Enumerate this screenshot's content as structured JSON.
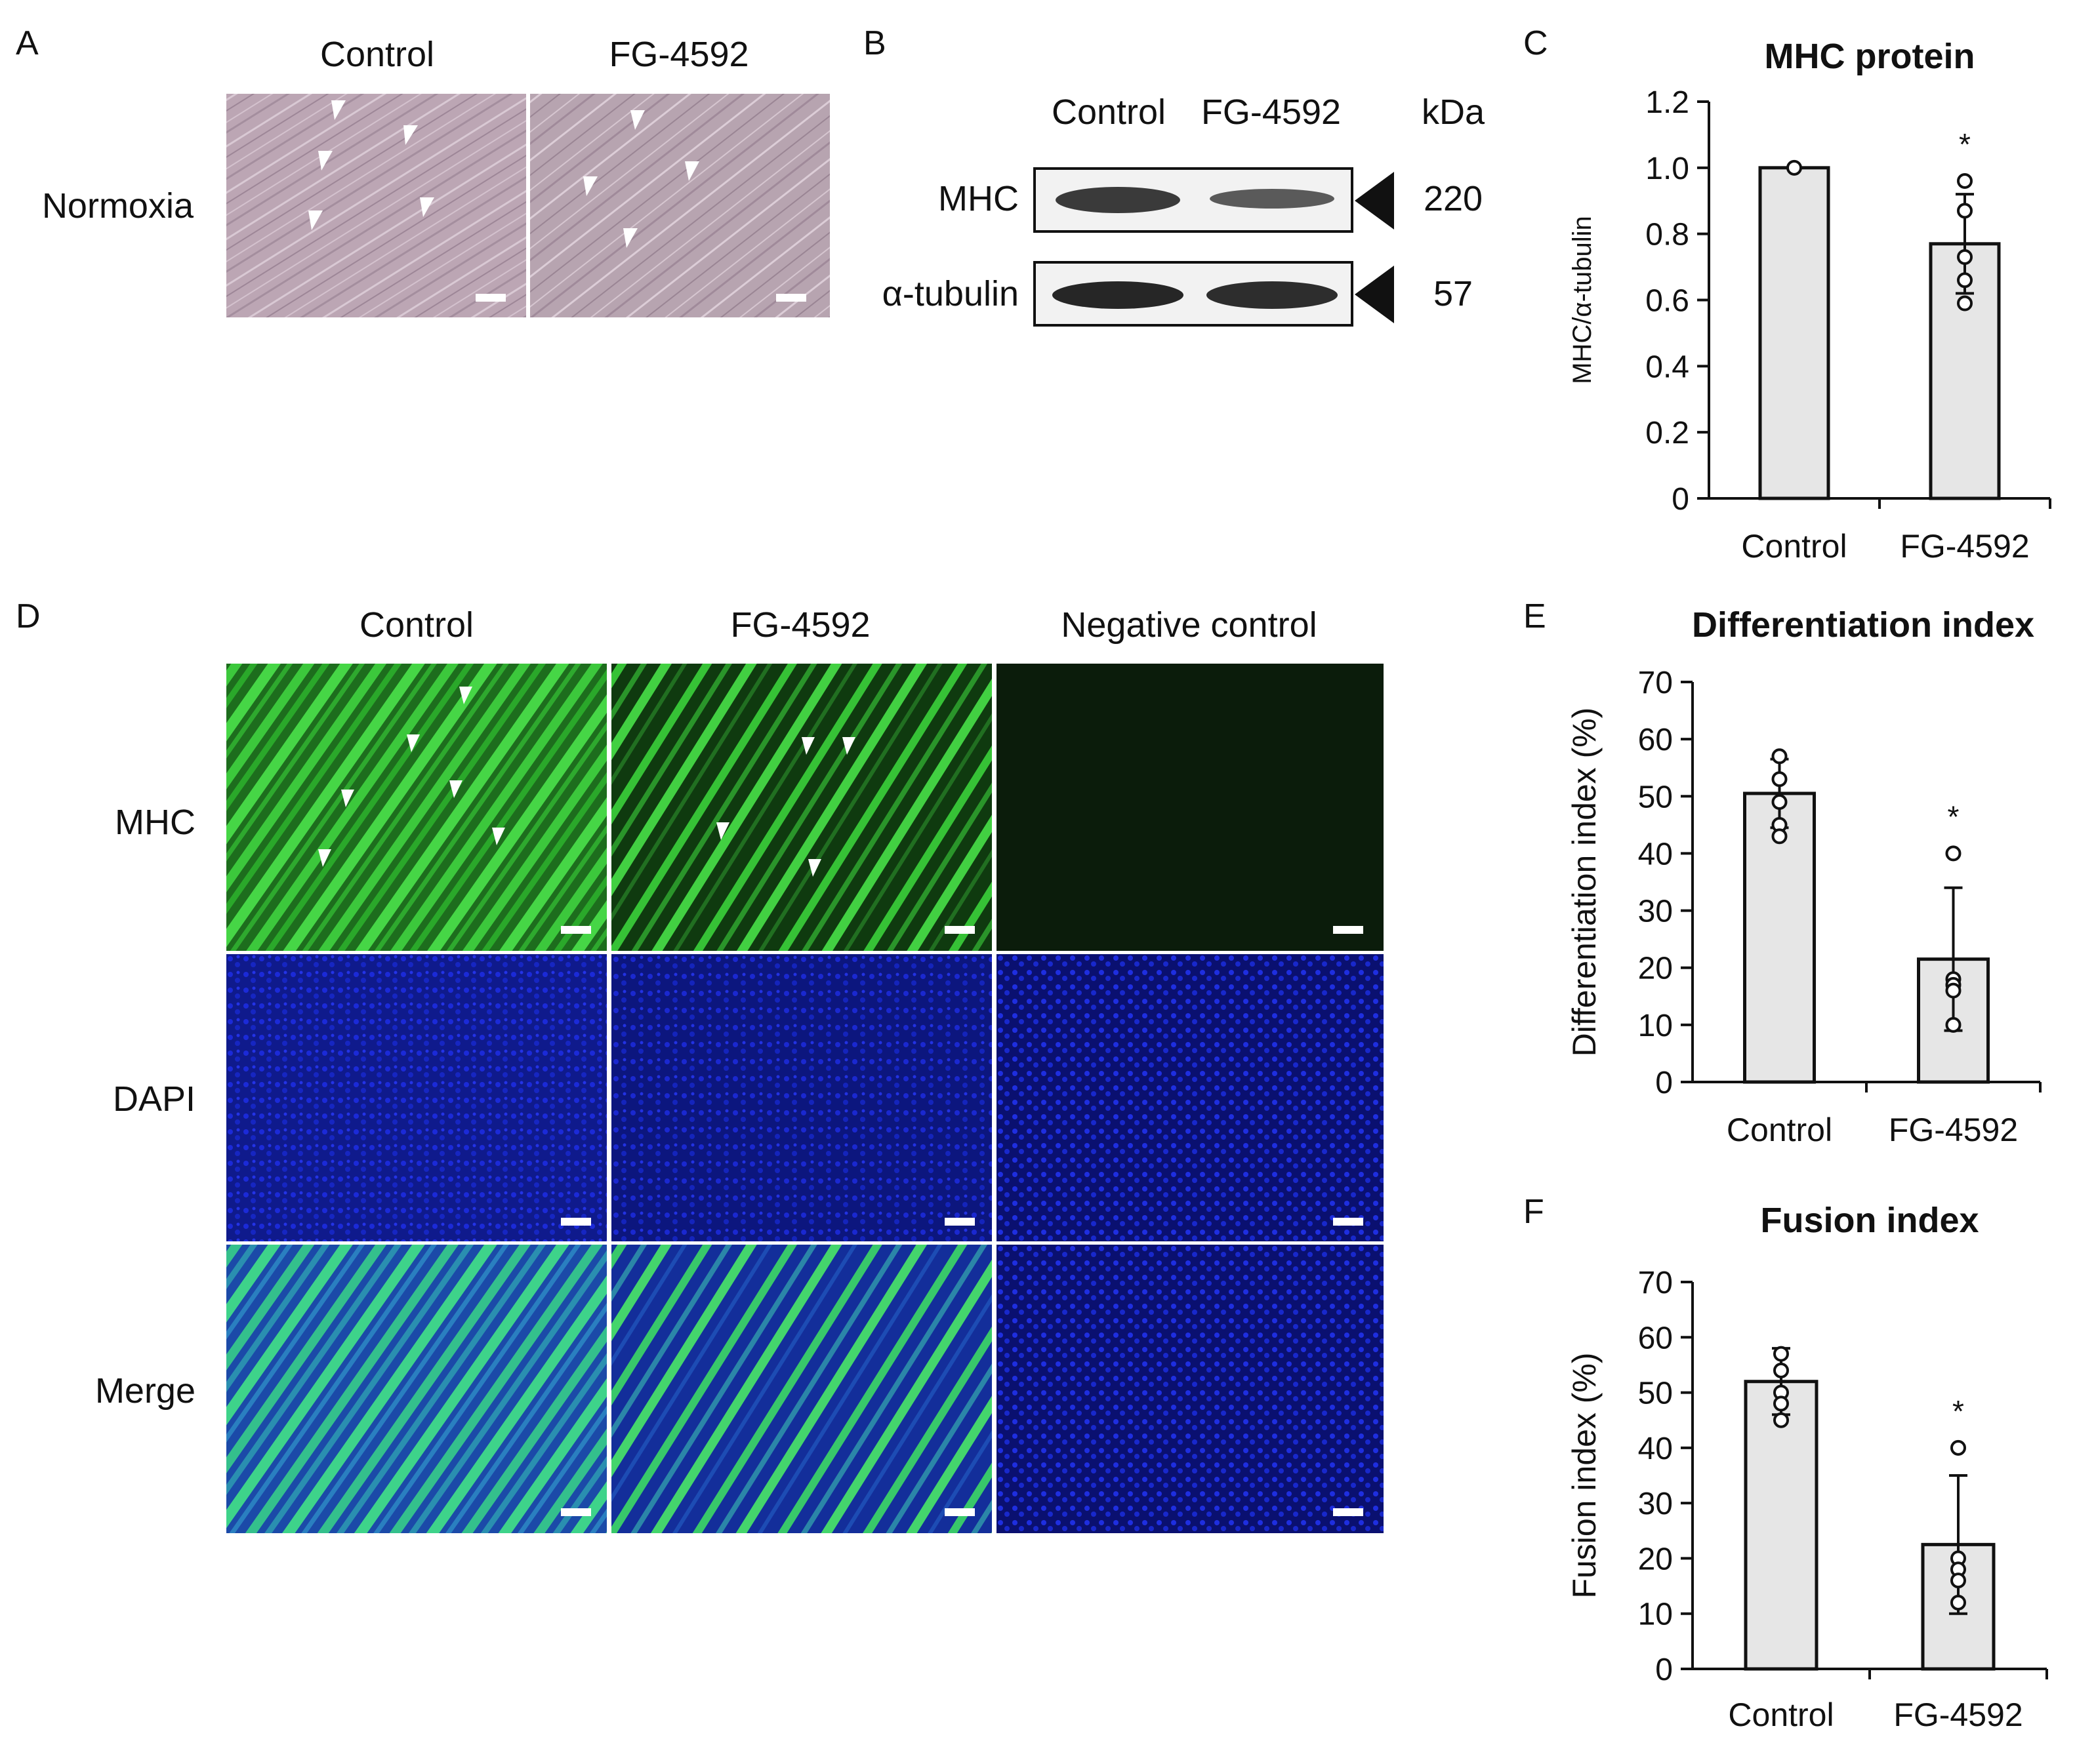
{
  "panels": {
    "A": {
      "letter": "A",
      "columns": [
        "Control",
        "FG-4592"
      ],
      "row_label": "Normoxia"
    },
    "B": {
      "letter": "B",
      "columns": [
        "Control",
        "FG-4592"
      ],
      "unit": "kDa",
      "bands": [
        {
          "name": "MHC",
          "kda": "220"
        },
        {
          "name": "α-tubulin",
          "kda": "57"
        }
      ]
    },
    "C": {
      "letter": "C"
    },
    "D": {
      "letter": "D",
      "columns": [
        "Control",
        "FG-4592",
        "Negative control"
      ],
      "rows": [
        "MHC",
        "DAPI",
        "Merge"
      ]
    },
    "E": {
      "letter": "E"
    },
    "F": {
      "letter": "F"
    }
  },
  "colors": {
    "bar_fill": "#e6e6e6",
    "brightfield": "#b9a4b3",
    "mhc_green": "#2fbf2f",
    "dapi_blue": "#1a1ad6"
  },
  "chart_data": [
    {
      "id": "C",
      "type": "bar",
      "title": "MHC protein",
      "xlabel": "",
      "ylabel": "MHC/α-tubulin",
      "categories": [
        "Control",
        "FG-4592"
      ],
      "values": [
        1.0,
        0.77
      ],
      "error": [
        0.0,
        0.15
      ],
      "points": [
        [
          1.0
        ],
        [
          0.96,
          0.87,
          0.73,
          0.66,
          0.59
        ]
      ],
      "significance": [
        "",
        "*"
      ],
      "ylim": [
        0,
        1.2
      ],
      "yticks": [
        "0",
        "0.2",
        "0.4",
        "0.6",
        "0.8",
        "1.0",
        "1.2"
      ],
      "grid": false
    },
    {
      "id": "E",
      "type": "bar",
      "title": "Differentiation index",
      "xlabel": "",
      "ylabel": "Differentiation index (%)",
      "categories": [
        "Control",
        "FG-4592"
      ],
      "values": [
        50.5,
        21.5
      ],
      "error": [
        6.0,
        12.5
      ],
      "points": [
        [
          57,
          53,
          49,
          45,
          43
        ],
        [
          40,
          18,
          17,
          16,
          10
        ]
      ],
      "significance": [
        "",
        "*"
      ],
      "ylim": [
        0,
        70
      ],
      "yticks": [
        "0",
        "10",
        "20",
        "30",
        "40",
        "50",
        "60",
        "70"
      ],
      "grid": false
    },
    {
      "id": "F",
      "type": "bar",
      "title": "Fusion index",
      "xlabel": "",
      "ylabel": "Fusion index (%)",
      "categories": [
        "Control",
        "FG-4592"
      ],
      "values": [
        52,
        22.5
      ],
      "error": [
        6.0,
        12.5
      ],
      "points": [
        [
          57,
          54,
          50,
          48,
          45
        ],
        [
          40,
          20,
          18,
          16,
          12
        ]
      ],
      "significance": [
        "",
        "*"
      ],
      "ylim": [
        0,
        70
      ],
      "yticks": [
        "0",
        "10",
        "20",
        "30",
        "40",
        "50",
        "60",
        "70"
      ],
      "grid": false
    }
  ]
}
